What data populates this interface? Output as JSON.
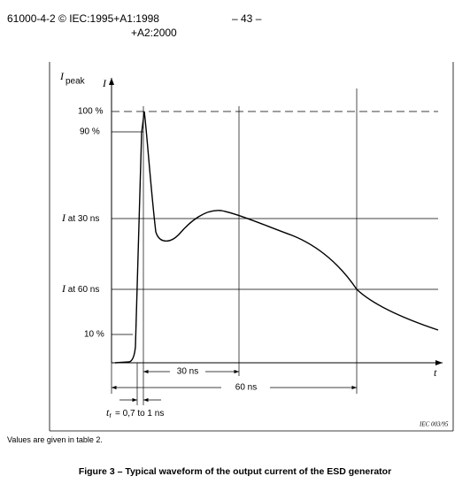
{
  "header": {
    "left": "61000-4-2 © IEC:1995+A1:1998",
    "left_line2": "+A2:2000",
    "page": "– 43 –"
  },
  "figure": {
    "y_axis": {
      "symbol": "I",
      "peak_symbol": "I",
      "peak_subscript": "peak"
    },
    "x_axis": {
      "symbol": "t"
    },
    "levels": [
      "100 %",
      "90 %",
      {
        "symbol": "I",
        "text": "at 30 ns"
      },
      {
        "symbol": "I",
        "text": "at 60 ns"
      },
      "10 %"
    ],
    "spans": [
      "30 ns",
      "60 ns"
    ],
    "rise_time": {
      "symbol": "t",
      "subscript": "r",
      "text": "= 0,7 to 1 ns"
    },
    "credit": "IEC  003/95"
  },
  "note": "Values are given in table 2.",
  "caption": "Figure 3 – Typical waveform of the output current of the ESD generator"
}
